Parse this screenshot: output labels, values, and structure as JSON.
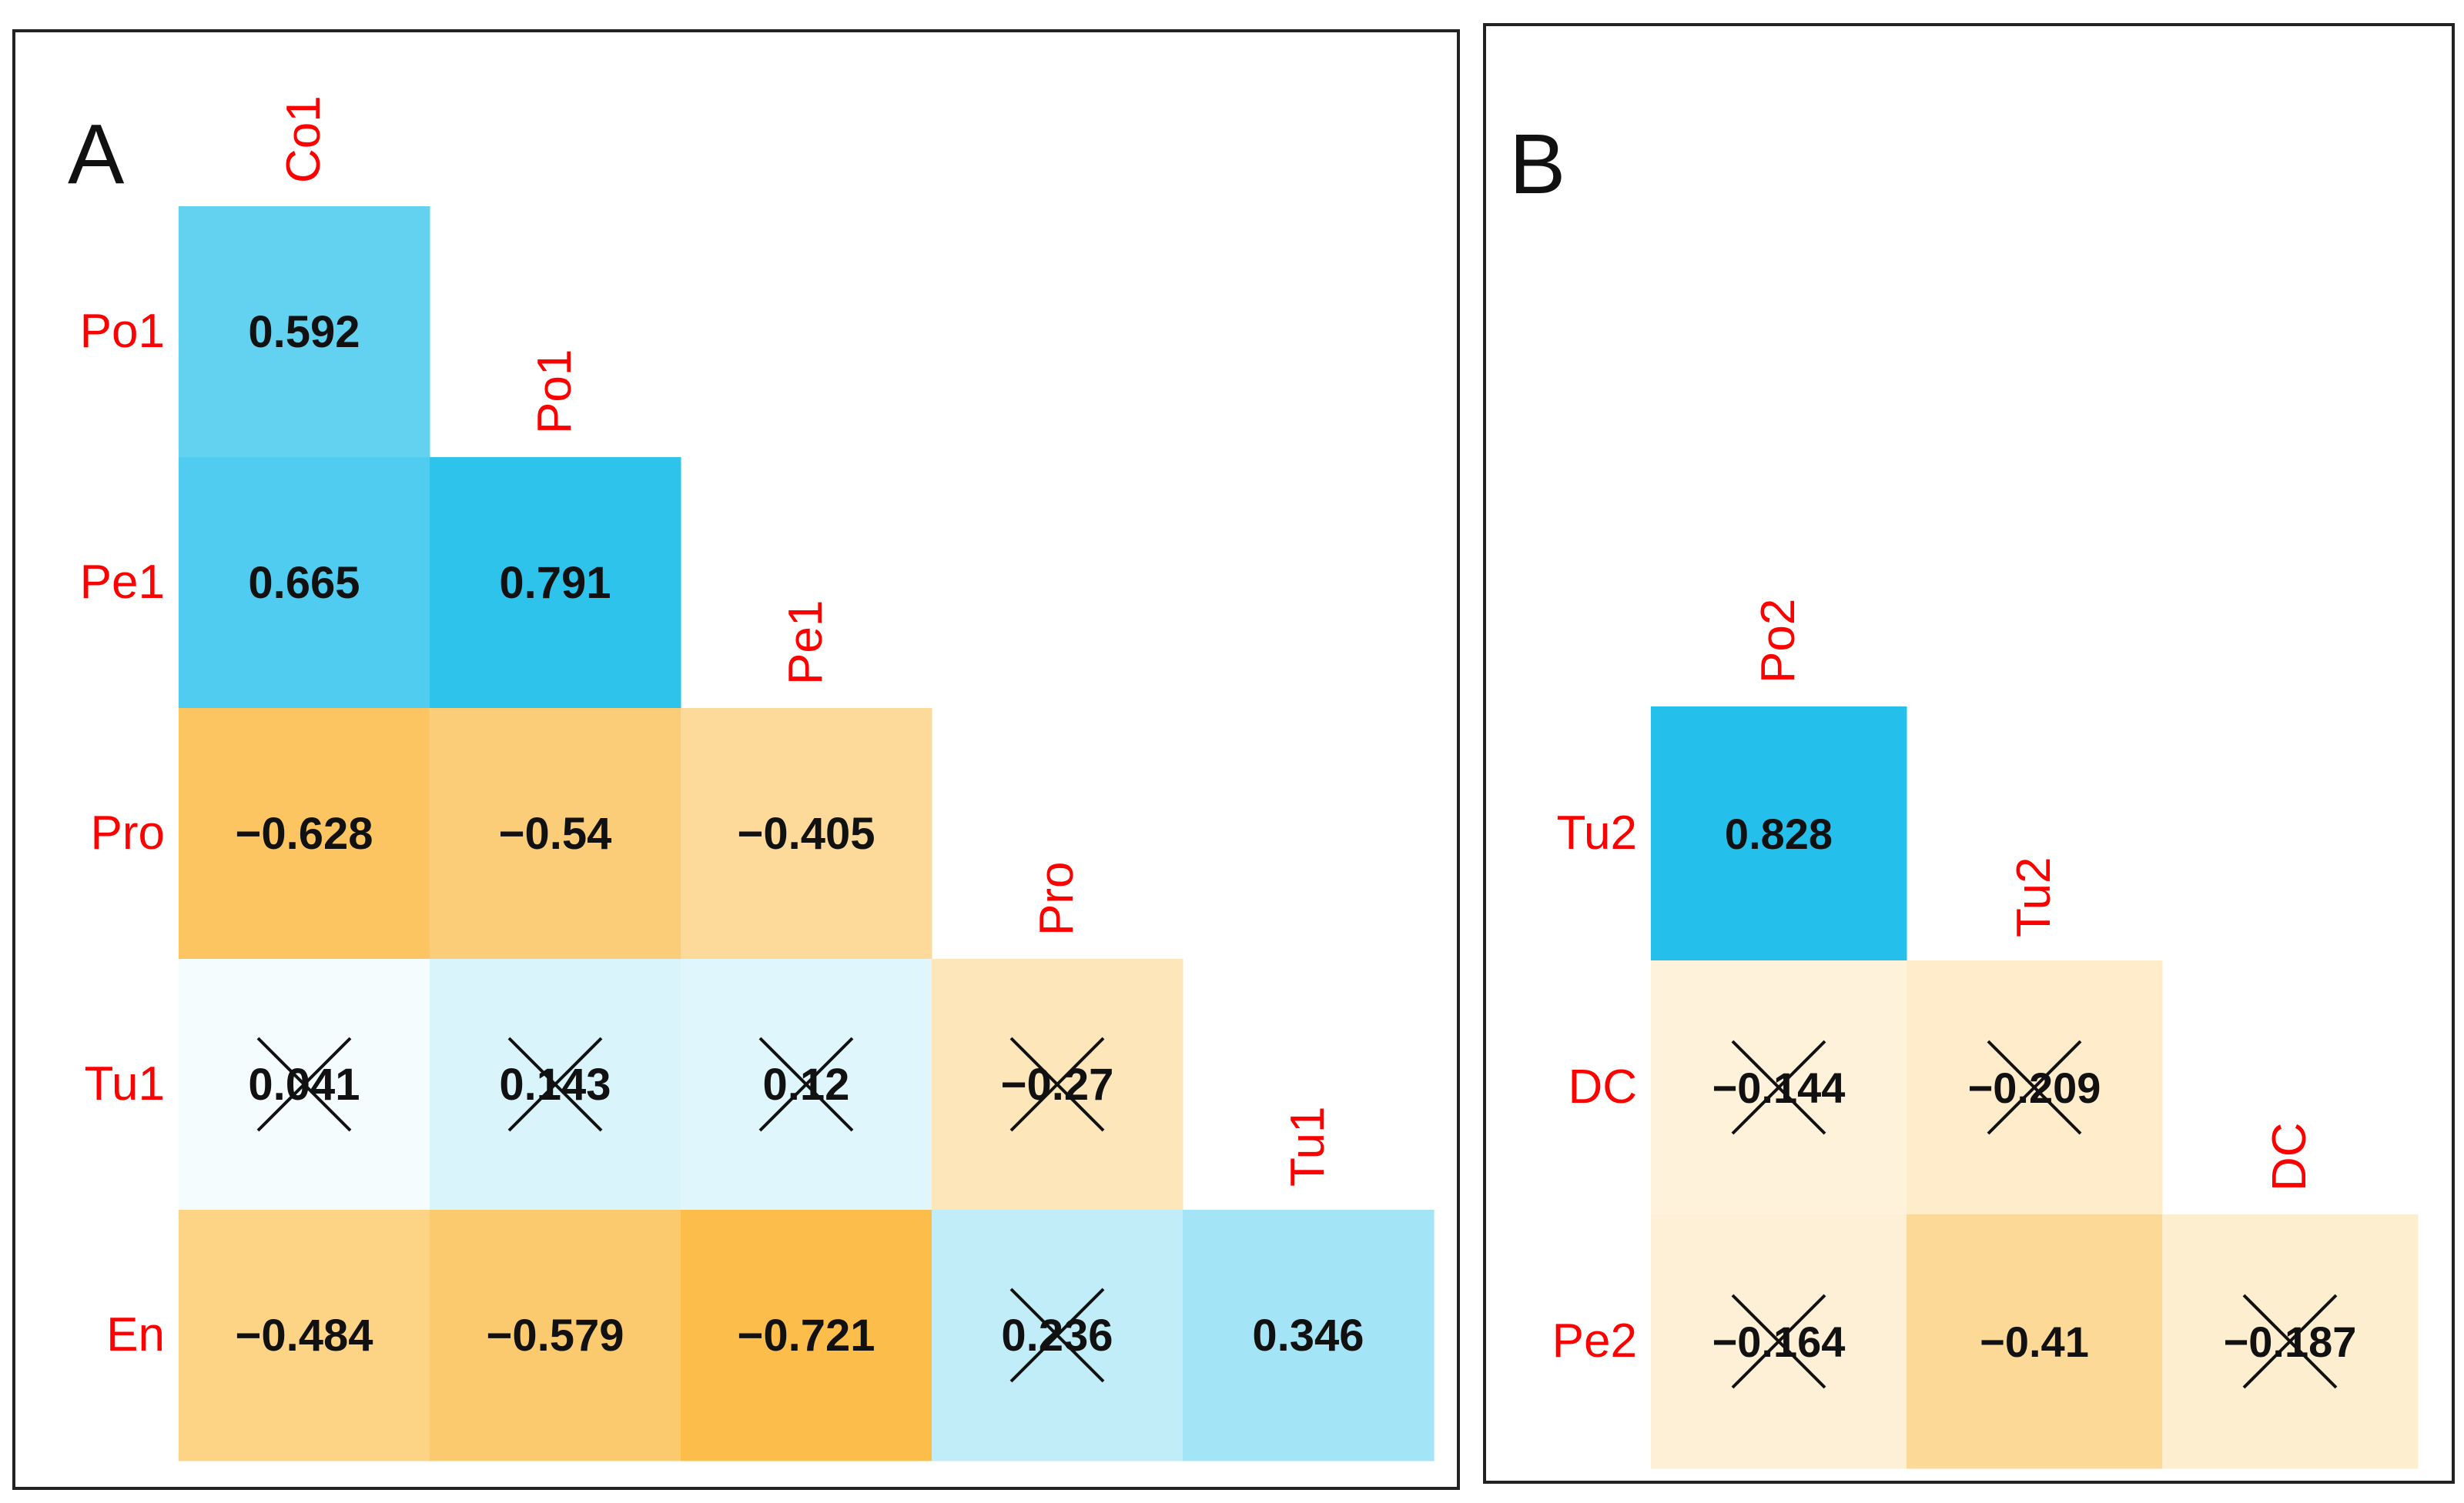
{
  "colors": {
    "positive": "#1ebeea",
    "negative": "#fbb12a",
    "neutral": "#ffffff",
    "label": "#ff0000",
    "value": "#111111",
    "cross": "#111111"
  },
  "chart_data": [
    {
      "type": "heatmap",
      "panel_label": "A",
      "variables": [
        "Co1",
        "Po1",
        "Pe1",
        "Pro",
        "Tu1",
        "En"
      ],
      "column_labels": [
        "Co1",
        "Po1",
        "Pe1",
        "Pro",
        "Tu1"
      ],
      "row_labels": [
        "Po1",
        "Pe1",
        "Pro",
        "Tu1",
        "En"
      ],
      "color_scale": [
        -1,
        1
      ],
      "cells": [
        {
          "row": "Po1",
          "col": "Co1",
          "value": 0.592,
          "label": "0.592",
          "crossed": false
        },
        {
          "row": "Pe1",
          "col": "Co1",
          "value": 0.665,
          "label": "0.665",
          "crossed": false
        },
        {
          "row": "Pe1",
          "col": "Po1",
          "value": 0.791,
          "label": "0.791",
          "crossed": false
        },
        {
          "row": "Pro",
          "col": "Co1",
          "value": -0.628,
          "label": "−0.628",
          "crossed": false
        },
        {
          "row": "Pro",
          "col": "Po1",
          "value": -0.54,
          "label": "−0.54",
          "crossed": false
        },
        {
          "row": "Pro",
          "col": "Pe1",
          "value": -0.405,
          "label": "−0.405",
          "crossed": false
        },
        {
          "row": "Tu1",
          "col": "Co1",
          "value": 0.041,
          "label": "0.041",
          "crossed": true
        },
        {
          "row": "Tu1",
          "col": "Po1",
          "value": 0.143,
          "label": "0.143",
          "crossed": true
        },
        {
          "row": "Tu1",
          "col": "Pe1",
          "value": 0.12,
          "label": "0.12",
          "crossed": true
        },
        {
          "row": "Tu1",
          "col": "Pro",
          "value": -0.27,
          "label": "−0.27",
          "crossed": true
        },
        {
          "row": "En",
          "col": "Co1",
          "value": -0.484,
          "label": "−0.484",
          "crossed": false
        },
        {
          "row": "En",
          "col": "Po1",
          "value": -0.579,
          "label": "−0.579",
          "crossed": false
        },
        {
          "row": "En",
          "col": "Pe1",
          "value": -0.721,
          "label": "−0.721",
          "crossed": false
        },
        {
          "row": "En",
          "col": "Pro",
          "value": 0.236,
          "label": "0.236",
          "crossed": true
        },
        {
          "row": "En",
          "col": "Tu1",
          "value": 0.346,
          "label": "0.346",
          "crossed": false
        }
      ]
    },
    {
      "type": "heatmap",
      "panel_label": "B",
      "variables": [
        "Po2",
        "Tu2",
        "DC",
        "Pe2"
      ],
      "column_labels": [
        "Po2",
        "Tu2",
        "DC"
      ],
      "row_labels": [
        "Tu2",
        "DC",
        "Pe2"
      ],
      "color_scale": [
        -1,
        1
      ],
      "cells": [
        {
          "row": "Tu2",
          "col": "Po2",
          "value": 0.828,
          "label": "0.828",
          "crossed": false
        },
        {
          "row": "DC",
          "col": "Po2",
          "value": -0.144,
          "label": "−0.144",
          "crossed": true
        },
        {
          "row": "DC",
          "col": "Tu2",
          "value": -0.209,
          "label": "−0.209",
          "crossed": true
        },
        {
          "row": "Pe2",
          "col": "Po2",
          "value": -0.164,
          "label": "−0.164",
          "crossed": true
        },
        {
          "row": "Pe2",
          "col": "Tu2",
          "value": -0.41,
          "label": "−0.41",
          "crossed": false
        },
        {
          "row": "Pe2",
          "col": "DC",
          "value": -0.187,
          "label": "−0.187",
          "crossed": true
        }
      ]
    }
  ]
}
